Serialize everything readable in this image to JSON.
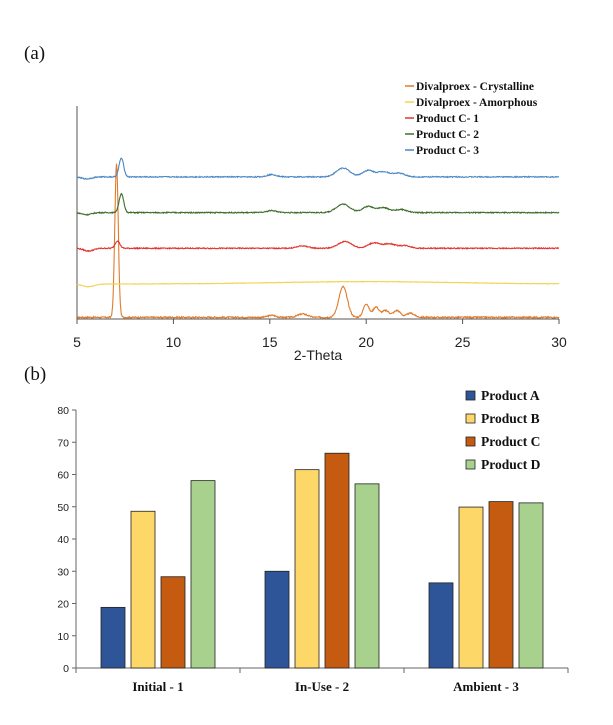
{
  "panel_labels": {
    "a": "(a)",
    "b": "(b)"
  },
  "chart_data": [
    {
      "type": "line",
      "panel": "(a)",
      "title": "",
      "xlabel": "2-Theta",
      "ylabel": "",
      "xlim": [
        5,
        30
      ],
      "xticks": [
        "5",
        "10",
        "15",
        "20",
        "25",
        "30"
      ],
      "stacked_offset": true,
      "legend_position": "top-right",
      "series": [
        {
          "name": "Divalproex - Crystalline",
          "color": "#e07b2c",
          "baseline": 0.2,
          "noise": 0.4,
          "peaks": [
            [
              7.05,
              45,
              0.09
            ],
            [
              18.8,
              9,
              0.22
            ],
            [
              20.0,
              4,
              0.15
            ],
            [
              20.5,
              3,
              0.15
            ],
            [
              21.0,
              2,
              0.2
            ],
            [
              21.6,
              2,
              0.18
            ],
            [
              22.3,
              1.2,
              0.2
            ],
            [
              16.7,
              1,
              0.25
            ],
            [
              15.1,
              0.6,
              0.2
            ]
          ]
        },
        {
          "name": "Divalproex - Amorphous",
          "color": "#f2d34f",
          "baseline": 10,
          "noise": 0.15,
          "peaks": [
            [
              5.6,
              -0.8,
              0.3
            ],
            [
              20.0,
              0.7,
              4.5
            ]
          ]
        },
        {
          "name": "Product C- 1",
          "color": "#e2332e",
          "baseline": 20.5,
          "noise": 0.3,
          "peaks": [
            [
              7.1,
              2.2,
              0.12
            ],
            [
              18.9,
              2.0,
              0.35
            ],
            [
              20.4,
              1.6,
              0.3
            ],
            [
              21.2,
              1.3,
              0.3
            ],
            [
              22.0,
              0.8,
              0.3
            ],
            [
              16.7,
              0.7,
              0.3
            ],
            [
              5.6,
              -0.8,
              0.25
            ]
          ]
        },
        {
          "name": "Product C- 2",
          "color": "#3f6f2d",
          "baseline": 31,
          "noise": 0.3,
          "peaks": [
            [
              7.3,
              5.5,
              0.12
            ],
            [
              18.8,
              2.5,
              0.35
            ],
            [
              20.1,
              1.8,
              0.3
            ],
            [
              20.9,
              1.4,
              0.3
            ],
            [
              21.8,
              0.9,
              0.3
            ],
            [
              15.1,
              0.6,
              0.25
            ],
            [
              5.5,
              -0.6,
              0.25
            ]
          ]
        },
        {
          "name": "Product C- 3",
          "color": "#4a86c5",
          "baseline": 41.5,
          "noise": 0.3,
          "peaks": [
            [
              7.3,
              5.5,
              0.12
            ],
            [
              18.8,
              2.6,
              0.35
            ],
            [
              20.1,
              1.9,
              0.3
            ],
            [
              20.9,
              1.5,
              0.3
            ],
            [
              21.7,
              1.1,
              0.3
            ],
            [
              15.1,
              0.7,
              0.25
            ],
            [
              5.5,
              -0.6,
              0.25
            ]
          ]
        }
      ]
    },
    {
      "type": "bar",
      "panel": "(b)",
      "title": "",
      "xlabel": "",
      "ylabel": "",
      "ylim": [
        0,
        80
      ],
      "yticks": [
        0,
        10,
        20,
        30,
        40,
        50,
        60,
        70,
        80
      ],
      "grid": false,
      "legend_position": "top-right",
      "categories": [
        "Initial - 1",
        "In-Use - 2",
        "Ambient - 3"
      ],
      "series": [
        {
          "name": "Product A",
          "color": "#2e5597",
          "values": [
            18.8,
            30.0,
            26.4
          ]
        },
        {
          "name": "Product B",
          "color": "#fdd868",
          "values": [
            48.6,
            61.5,
            49.9
          ]
        },
        {
          "name": "Product C",
          "color": "#c45b11",
          "values": [
            28.3,
            66.6,
            51.6
          ]
        },
        {
          "name": "Product D",
          "color": "#a9d18e",
          "values": [
            58.1,
            57.1,
            51.2
          ]
        }
      ]
    }
  ]
}
